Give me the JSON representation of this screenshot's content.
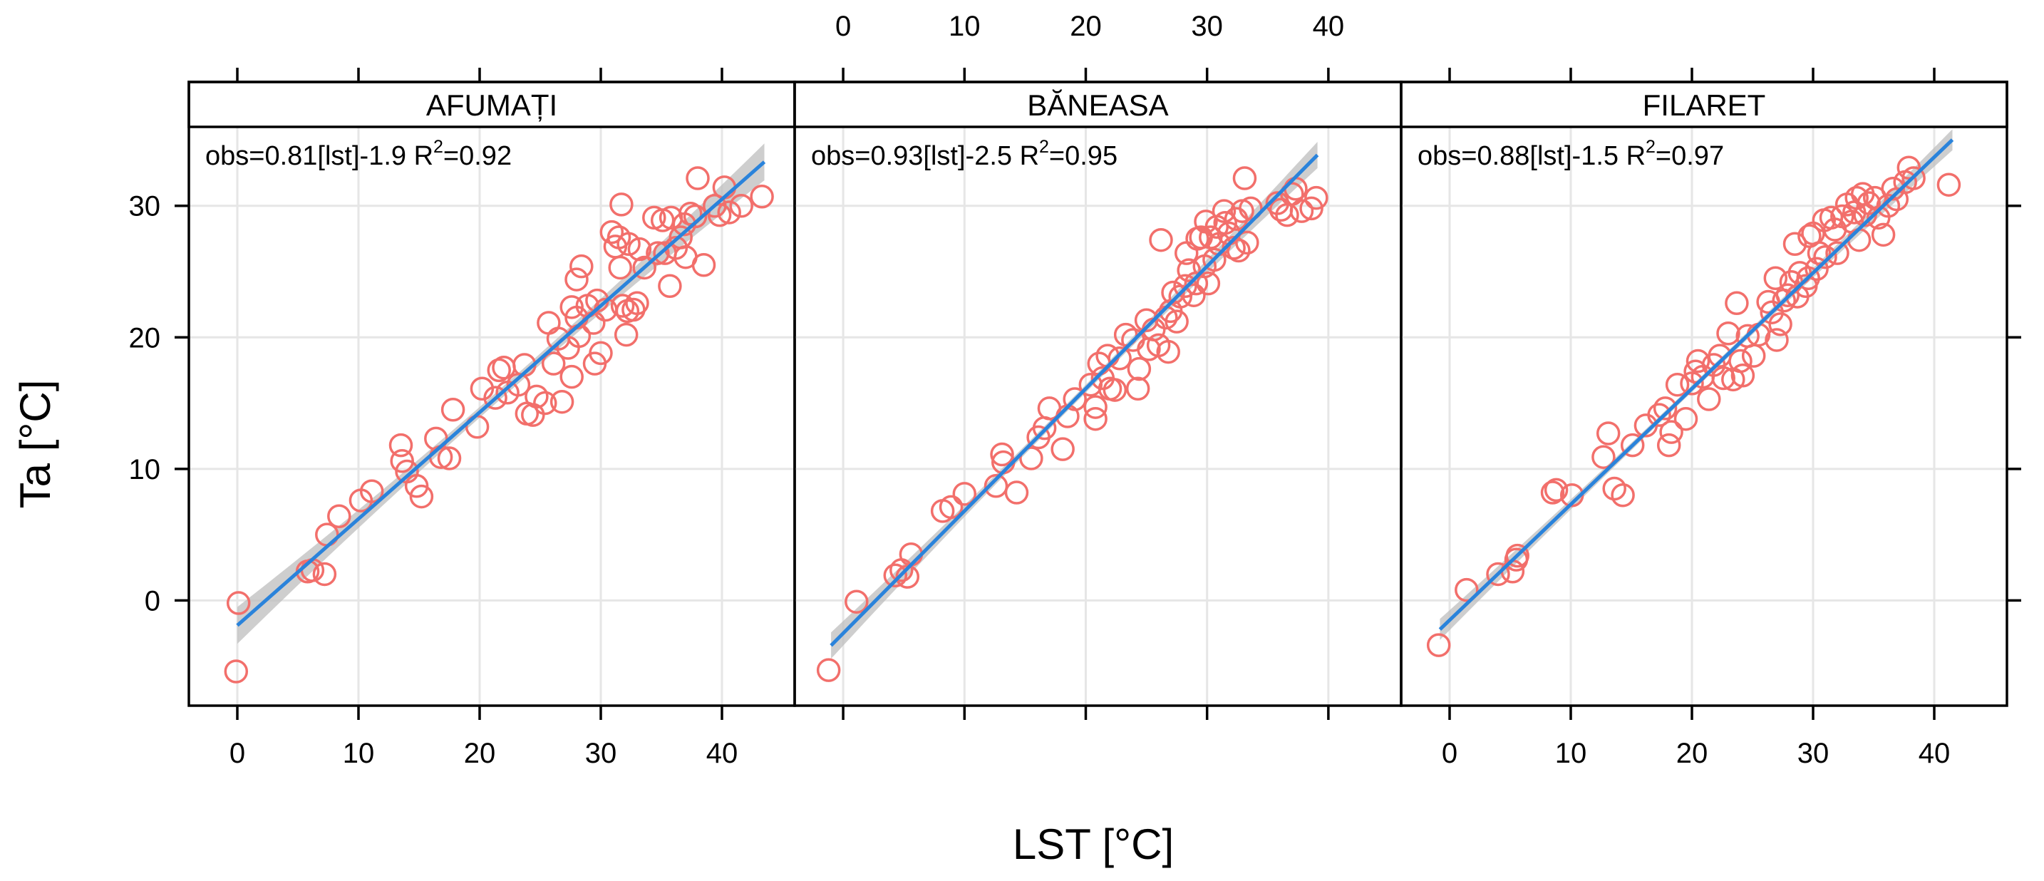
{
  "chart_data": {
    "type": "scatter",
    "xlabel": "LST [°C]",
    "ylabel": "Ta [°C]",
    "xlim": [
      -4,
      46
    ],
    "ylim": [
      -8,
      36
    ],
    "xticks": [
      0,
      10,
      20,
      30,
      40
    ],
    "yticks": [
      0,
      10,
      20,
      30
    ],
    "x_tick_labels": [
      "0",
      "10",
      "20",
      "30",
      "40"
    ],
    "y_tick_labels": [
      "0",
      "10",
      "20",
      "30"
    ],
    "grid": true,
    "colors": {
      "points": "#f26f6b",
      "fit": "#2a83db",
      "ci": "#bebebe",
      "grid": "#e6e6e6"
    },
    "panels": [
      {
        "name": "AFUMAȚI",
        "equation": "obs=0.81[lst]-1.9 R",
        "r2_super": "2",
        "r2_value": "=0.92",
        "fit": {
          "slope": 0.81,
          "intercept": -1.9,
          "x_start": 0,
          "x_end": 43.5,
          "ci_halfwidth_ends": 1.4,
          "ci_halfwidth_mid": 0.4
        },
        "points": [
          [
            0.1,
            -0.2
          ],
          [
            -0.1,
            -5.4
          ],
          [
            5.8,
            2.2
          ],
          [
            6.2,
            2.3
          ],
          [
            7.2,
            2.0
          ],
          [
            7.4,
            5.0
          ],
          [
            8.4,
            6.4
          ],
          [
            10.2,
            7.6
          ],
          [
            11.1,
            8.3
          ],
          [
            13.5,
            11.8
          ],
          [
            13.6,
            10.6
          ],
          [
            14.0,
            9.8
          ],
          [
            14.8,
            8.7
          ],
          [
            15.2,
            7.9
          ],
          [
            16.4,
            12.3
          ],
          [
            16.8,
            10.9
          ],
          [
            17.5,
            10.8
          ],
          [
            17.8,
            14.5
          ],
          [
            19.8,
            13.2
          ],
          [
            20.2,
            16.1
          ],
          [
            21.3,
            15.4
          ],
          [
            21.6,
            17.5
          ],
          [
            22.0,
            17.7
          ],
          [
            22.3,
            15.8
          ],
          [
            23.2,
            16.4
          ],
          [
            23.7,
            17.9
          ],
          [
            23.9,
            14.2
          ],
          [
            24.4,
            14.1
          ],
          [
            24.7,
            15.5
          ],
          [
            25.4,
            15.0
          ],
          [
            25.7,
            21.1
          ],
          [
            26.1,
            18.0
          ],
          [
            26.8,
            15.1
          ],
          [
            26.5,
            19.9
          ],
          [
            27.3,
            19.2
          ],
          [
            27.6,
            17.0
          ],
          [
            27.6,
            22.3
          ],
          [
            28.0,
            21.5
          ],
          [
            28.2,
            20.1
          ],
          [
            28.0,
            24.4
          ],
          [
            28.4,
            25.4
          ],
          [
            28.9,
            22.4
          ],
          [
            29.5,
            18.0
          ],
          [
            29.7,
            22.8
          ],
          [
            29.4,
            21.1
          ],
          [
            30.0,
            18.8
          ],
          [
            30.4,
            22.1
          ],
          [
            30.9,
            28.0
          ],
          [
            31.2,
            26.9
          ],
          [
            31.5,
            27.6
          ],
          [
            31.7,
            30.1
          ],
          [
            31.6,
            25.3
          ],
          [
            31.8,
            22.4
          ],
          [
            32.1,
            20.2
          ],
          [
            32.3,
            27.1
          ],
          [
            32.2,
            22.0
          ],
          [
            32.7,
            22.1
          ],
          [
            33.0,
            22.6
          ],
          [
            33.2,
            26.7
          ],
          [
            33.6,
            25.3
          ],
          [
            34.4,
            29.1
          ],
          [
            34.7,
            26.4
          ],
          [
            35.1,
            28.9
          ],
          [
            35.3,
            26.4
          ],
          [
            35.8,
            29.1
          ],
          [
            35.7,
            23.9
          ],
          [
            36.2,
            26.8
          ],
          [
            36.6,
            27.6
          ],
          [
            36.9,
            28.6
          ],
          [
            37.0,
            26.1
          ],
          [
            37.4,
            29.4
          ],
          [
            37.8,
            29.2
          ],
          [
            38.0,
            32.1
          ],
          [
            38.5,
            25.5
          ],
          [
            39.4,
            30.0
          ],
          [
            39.8,
            29.3
          ],
          [
            40.2,
            31.4
          ],
          [
            40.6,
            29.5
          ],
          [
            41.6,
            30.0
          ],
          [
            43.3,
            30.7
          ]
        ]
      },
      {
        "name": "BĂNEASA",
        "equation": "obs=0.93[lst]-2.5 R",
        "r2_super": "2",
        "r2_value": "=0.95",
        "fit": {
          "slope": 0.93,
          "intercept": -2.5,
          "x_start": -1,
          "x_end": 39.1,
          "ci_halfwidth_ends": 1.0,
          "ci_halfwidth_mid": 0.3
        },
        "points": [
          [
            -1.2,
            -5.3
          ],
          [
            1.1,
            -0.1
          ],
          [
            4.3,
            1.9
          ],
          [
            4.8,
            2.3
          ],
          [
            5.3,
            1.8
          ],
          [
            5.6,
            3.5
          ],
          [
            8.2,
            6.8
          ],
          [
            8.9,
            7.1
          ],
          [
            10.0,
            8.1
          ],
          [
            12.6,
            8.7
          ],
          [
            13.1,
            11.1
          ],
          [
            13.2,
            10.5
          ],
          [
            14.3,
            8.2
          ],
          [
            15.5,
            10.8
          ],
          [
            16.1,
            12.4
          ],
          [
            16.6,
            13.1
          ],
          [
            17.0,
            14.6
          ],
          [
            18.1,
            11.5
          ],
          [
            18.5,
            14.0
          ],
          [
            19.1,
            15.3
          ],
          [
            20.4,
            16.4
          ],
          [
            20.8,
            14.7
          ],
          [
            20.8,
            13.8
          ],
          [
            21.1,
            18.0
          ],
          [
            21.4,
            16.9
          ],
          [
            21.8,
            18.6
          ],
          [
            22.0,
            16.1
          ],
          [
            22.4,
            16.0
          ],
          [
            22.8,
            18.4
          ],
          [
            23.3,
            20.2
          ],
          [
            23.9,
            19.8
          ],
          [
            24.3,
            16.1
          ],
          [
            24.4,
            17.6
          ],
          [
            25.0,
            21.3
          ],
          [
            25.2,
            19.1
          ],
          [
            25.6,
            20.6
          ],
          [
            26.0,
            19.4
          ],
          [
            26.2,
            27.4
          ],
          [
            26.6,
            21.5
          ],
          [
            26.8,
            18.9
          ],
          [
            27.0,
            22.0
          ],
          [
            27.2,
            23.4
          ],
          [
            27.5,
            21.2
          ],
          [
            27.8,
            23.1
          ],
          [
            28.2,
            23.9
          ],
          [
            28.3,
            26.4
          ],
          [
            28.5,
            25.1
          ],
          [
            28.9,
            23.2
          ],
          [
            29.1,
            24.1
          ],
          [
            29.2,
            27.5
          ],
          [
            29.5,
            27.6
          ],
          [
            29.8,
            25.4
          ],
          [
            29.9,
            28.8
          ],
          [
            30.1,
            24.1
          ],
          [
            30.3,
            27.6
          ],
          [
            30.6,
            25.9
          ],
          [
            30.8,
            28.4
          ],
          [
            31.0,
            27.1
          ],
          [
            31.4,
            29.6
          ],
          [
            31.5,
            28.7
          ],
          [
            31.8,
            27.9
          ],
          [
            32.2,
            26.8
          ],
          [
            32.4,
            29.0
          ],
          [
            32.6,
            26.6
          ],
          [
            32.9,
            29.6
          ],
          [
            33.1,
            32.1
          ],
          [
            33.3,
            27.2
          ],
          [
            33.6,
            29.8
          ],
          [
            35.8,
            30.2
          ],
          [
            36.1,
            29.7
          ],
          [
            36.6,
            29.3
          ],
          [
            37.0,
            30.9
          ],
          [
            37.3,
            31.3
          ],
          [
            37.8,
            29.6
          ],
          [
            38.6,
            29.8
          ],
          [
            39.0,
            30.6
          ]
        ]
      },
      {
        "name": "FILARET",
        "equation": "obs=0.88[lst]-1.5 R",
        "r2_super": "2",
        "r2_value": "=0.97",
        "fit": {
          "slope": 0.88,
          "intercept": -1.5,
          "x_start": -0.8,
          "x_end": 41.5,
          "ci_halfwidth_ends": 0.8,
          "ci_halfwidth_mid": 0.25
        },
        "points": [
          [
            -0.9,
            -3.4
          ],
          [
            1.4,
            0.8
          ],
          [
            4.0,
            2.0
          ],
          [
            5.2,
            2.2
          ],
          [
            5.5,
            3.1
          ],
          [
            5.6,
            3.4
          ],
          [
            8.5,
            8.2
          ],
          [
            8.8,
            8.4
          ],
          [
            10.1,
            8.0
          ],
          [
            12.7,
            10.9
          ],
          [
            13.1,
            12.7
          ],
          [
            13.6,
            8.5
          ],
          [
            14.3,
            8.0
          ],
          [
            15.1,
            11.8
          ],
          [
            16.2,
            13.3
          ],
          [
            17.3,
            14.1
          ],
          [
            17.8,
            14.6
          ],
          [
            18.1,
            11.8
          ],
          [
            18.3,
            12.8
          ],
          [
            18.8,
            16.4
          ],
          [
            19.5,
            13.8
          ],
          [
            20.0,
            16.5
          ],
          [
            20.3,
            17.4
          ],
          [
            20.5,
            18.2
          ],
          [
            20.9,
            17.0
          ],
          [
            21.4,
            15.3
          ],
          [
            21.8,
            17.9
          ],
          [
            22.3,
            18.6
          ],
          [
            22.6,
            16.9
          ],
          [
            23.0,
            20.3
          ],
          [
            23.4,
            16.8
          ],
          [
            23.7,
            22.6
          ],
          [
            24.0,
            18.2
          ],
          [
            24.2,
            17.1
          ],
          [
            24.6,
            20.1
          ],
          [
            25.1,
            18.6
          ],
          [
            25.5,
            20.2
          ],
          [
            26.3,
            22.7
          ],
          [
            26.6,
            21.9
          ],
          [
            26.9,
            24.5
          ],
          [
            27.0,
            19.8
          ],
          [
            27.3,
            21.0
          ],
          [
            27.6,
            22.8
          ],
          [
            27.9,
            23.2
          ],
          [
            28.2,
            24.2
          ],
          [
            28.5,
            27.1
          ],
          [
            28.7,
            23.1
          ],
          [
            28.9,
            24.9
          ],
          [
            29.4,
            23.9
          ],
          [
            29.6,
            24.5
          ],
          [
            29.7,
            27.7
          ],
          [
            30.0,
            27.9
          ],
          [
            30.3,
            25.2
          ],
          [
            30.5,
            26.4
          ],
          [
            30.9,
            28.9
          ],
          [
            31.0,
            26.1
          ],
          [
            31.5,
            29.1
          ],
          [
            31.8,
            28.2
          ],
          [
            32.0,
            26.4
          ],
          [
            32.4,
            29.2
          ],
          [
            32.8,
            30.1
          ],
          [
            33.2,
            28.8
          ],
          [
            33.4,
            29.5
          ],
          [
            33.6,
            30.6
          ],
          [
            33.8,
            27.4
          ],
          [
            34.1,
            30.9
          ],
          [
            34.3,
            29.3
          ],
          [
            34.6,
            30.2
          ],
          [
            35.1,
            30.6
          ],
          [
            35.4,
            29.1
          ],
          [
            35.8,
            27.8
          ],
          [
            36.2,
            30.0
          ],
          [
            36.6,
            31.3
          ],
          [
            36.9,
            30.5
          ],
          [
            37.6,
            31.8
          ],
          [
            37.9,
            32.9
          ],
          [
            38.3,
            32.1
          ],
          [
            41.2,
            31.6
          ]
        ]
      }
    ]
  }
}
